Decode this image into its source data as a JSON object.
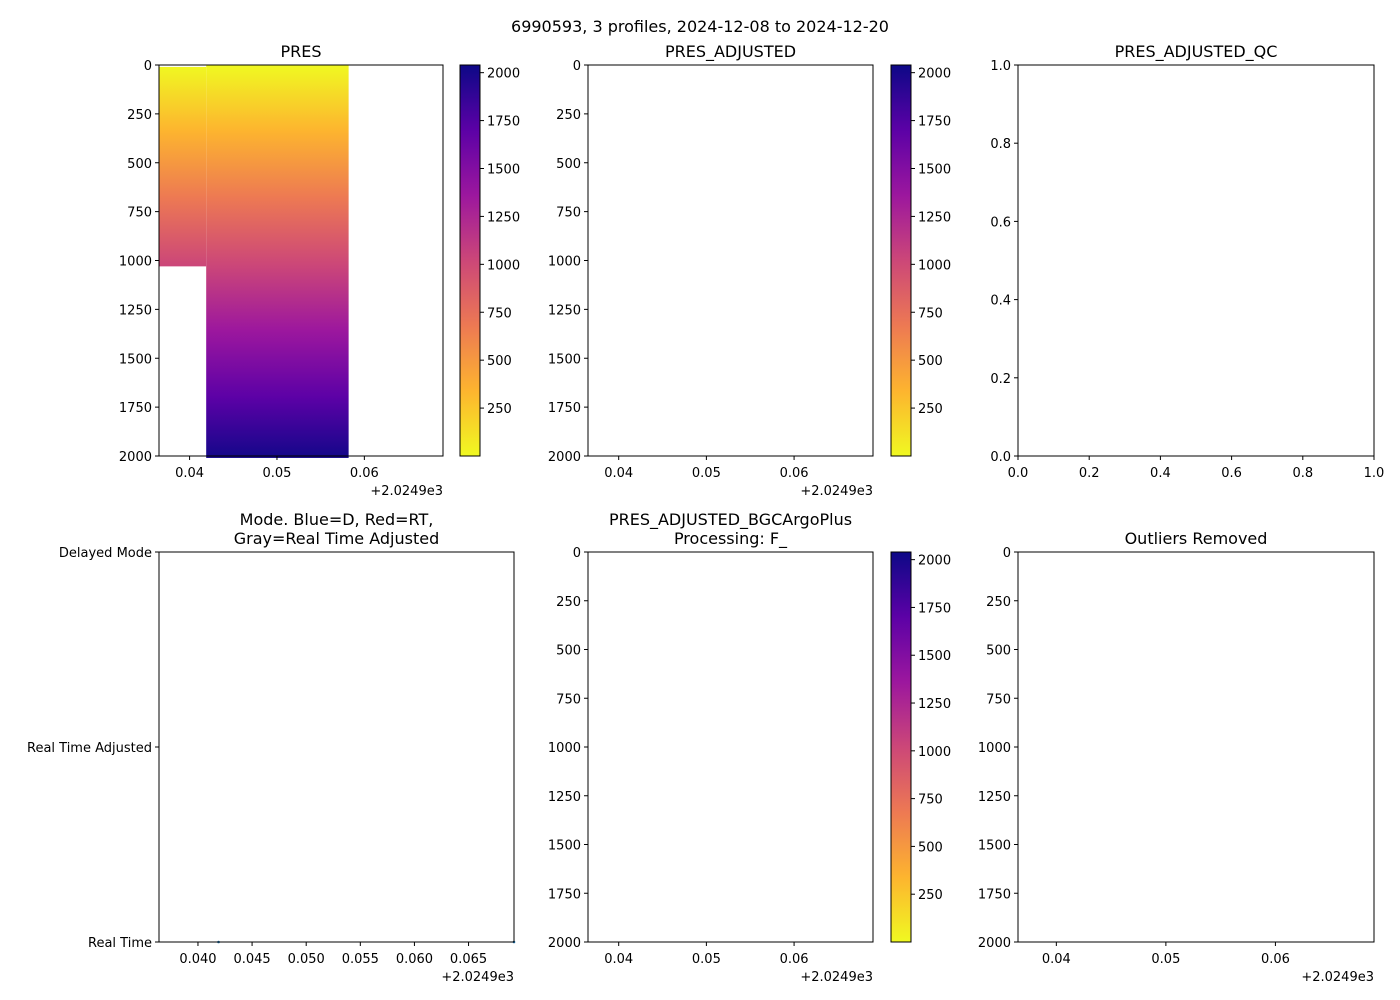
{
  "suptitle": "6990593, 3 profiles, 2024-12-08 to 2024-12-20",
  "colormap": [
    "#f0f921",
    "#fdb42f",
    "#ed7953",
    "#cc4778",
    "#9c179e",
    "#5c01a6",
    "#0d0887"
  ],
  "chart_data": [
    {
      "id": "pres",
      "type": "heatmap",
      "title": "PRES",
      "xlim": [
        2024.9365,
        2024.969
      ],
      "ylim": [
        2000,
        0
      ],
      "xticks": [
        0.04,
        0.05,
        0.06
      ],
      "xtick_labels": [
        "0.04",
        "0.05",
        "0.06"
      ],
      "x_offset_label": "+2.0249e3",
      "yticks": [
        0,
        250,
        500,
        750,
        1000,
        1250,
        1500,
        1750,
        2000
      ],
      "colorbar": {
        "range": [
          0,
          2040
        ],
        "ticks": [
          250,
          500,
          750,
          1000,
          1250,
          1500,
          1750,
          2000
        ]
      },
      "profiles": [
        {
          "x_start": 2024.9365,
          "x_end": 2024.9419,
          "p_min": 10,
          "p_max": 1030
        },
        {
          "x_start": 2024.9419,
          "x_end": 2024.9582,
          "p_min": 0,
          "p_max": 2010
        }
      ]
    },
    {
      "id": "pres-adjusted",
      "type": "heatmap",
      "title": "PRES_ADJUSTED",
      "xlim": [
        2024.9365,
        2024.969
      ],
      "ylim": [
        2000,
        0
      ],
      "xticks": [
        0.04,
        0.05,
        0.06
      ],
      "xtick_labels": [
        "0.04",
        "0.05",
        "0.06"
      ],
      "x_offset_label": "+2.0249e3",
      "yticks": [
        0,
        250,
        500,
        750,
        1000,
        1250,
        1500,
        1750,
        2000
      ],
      "colorbar": {
        "range": [
          0,
          2040
        ],
        "ticks": [
          250,
          500,
          750,
          1000,
          1250,
          1500,
          1750,
          2000
        ]
      },
      "profiles": []
    },
    {
      "id": "pres-adjusted-qc",
      "type": "scatter",
      "title": "PRES_ADJUSTED_QC",
      "xlim": [
        0,
        1
      ],
      "ylim": [
        0,
        1
      ],
      "xticks": [
        0.0,
        0.2,
        0.4,
        0.6,
        0.8,
        1.0
      ],
      "xtick_labels": [
        "0.0",
        "0.2",
        "0.4",
        "0.6",
        "0.8",
        "1.0"
      ],
      "yticks": [
        0.0,
        0.2,
        0.4,
        0.6,
        0.8,
        1.0
      ],
      "ytick_labels": [
        "0.0",
        "0.2",
        "0.4",
        "0.6",
        "0.8",
        "1.0"
      ],
      "points": []
    },
    {
      "id": "mode",
      "type": "scatter",
      "title": "Mode. Blue=D, Red=RT,\nGray=Real Time Adjusted",
      "xlim": [
        2024.9364,
        2024.9692
      ],
      "ylim": [
        0,
        2
      ],
      "xticks": [
        0.04,
        0.045,
        0.05,
        0.055,
        0.06,
        0.065
      ],
      "xtick_labels": [
        "0.040",
        "0.045",
        "0.050",
        "0.055",
        "0.060",
        "0.065"
      ],
      "x_offset_label": "+2.0249e3",
      "yticks": [
        0,
        1,
        2
      ],
      "ytick_labels": [
        "Real Time",
        "Real Time Adjusted",
        "Delayed Mode"
      ],
      "points": [
        {
          "x": 2024.9419,
          "y": 0
        },
        {
          "x": 2024.9692,
          "y": 0
        }
      ]
    },
    {
      "id": "bgc",
      "type": "heatmap",
      "title": "PRES_ADJUSTED_BGCArgoPlus\nProcessing: F_",
      "xlim": [
        2024.9365,
        2024.969
      ],
      "ylim": [
        2000,
        0
      ],
      "xticks": [
        0.04,
        0.05,
        0.06
      ],
      "xtick_labels": [
        "0.04",
        "0.05",
        "0.06"
      ],
      "x_offset_label": "+2.0249e3",
      "yticks": [
        0,
        250,
        500,
        750,
        1000,
        1250,
        1500,
        1750,
        2000
      ],
      "colorbar": {
        "range": [
          0,
          2040
        ],
        "ticks": [
          250,
          500,
          750,
          1000,
          1250,
          1500,
          1750,
          2000
        ]
      },
      "profiles": []
    },
    {
      "id": "outliers",
      "type": "scatter",
      "title": "Outliers Removed",
      "xlim": [
        2024.9365,
        2024.969
      ],
      "ylim": [
        2000,
        0
      ],
      "xticks": [
        0.04,
        0.05,
        0.06
      ],
      "xtick_labels": [
        "0.04",
        "0.05",
        "0.06"
      ],
      "x_offset_label": "+2.0249e3",
      "yticks": [
        0,
        250,
        500,
        750,
        1000,
        1250,
        1500,
        1750,
        2000
      ],
      "points": []
    }
  ]
}
